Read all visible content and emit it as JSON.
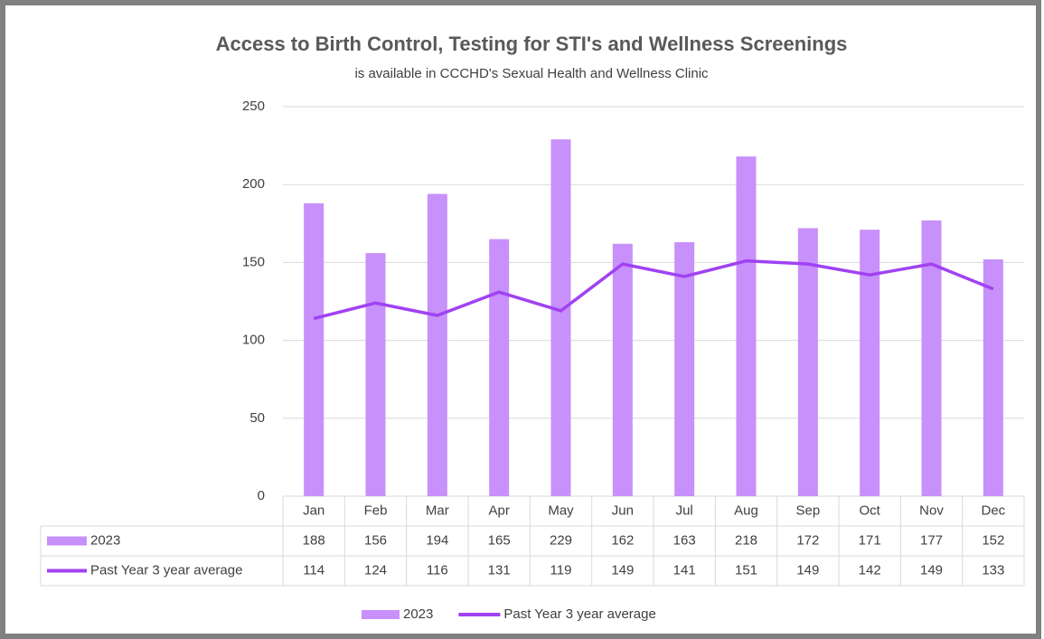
{
  "chart_data": {
    "type": "bar",
    "title": "Access to Birth Control, Testing for STI's and Wellness Screenings",
    "subtitle": "is available  in CCCHD's Sexual Health and Wellness Clinic",
    "categories": [
      "Jan",
      "Feb",
      "Mar",
      "Apr",
      "May",
      "Jun",
      "Jul",
      "Aug",
      "Sep",
      "Oct",
      "Nov",
      "Dec"
    ],
    "series": [
      {
        "name": "2023",
        "type": "bar",
        "color": "#c890fa",
        "values": [
          188,
          156,
          194,
          165,
          229,
          162,
          163,
          218,
          172,
          171,
          177,
          152
        ]
      },
      {
        "name": "Past Year 3 year average",
        "type": "line",
        "color": "#a042f2",
        "values": [
          114,
          124,
          116,
          131,
          119,
          149,
          141,
          151,
          149,
          142,
          149,
          133
        ]
      }
    ],
    "ylim": [
      0,
      250
    ],
    "yticks": [
      0,
      50,
      100,
      150,
      200,
      250
    ],
    "grid": true,
    "legend": "bottom"
  }
}
